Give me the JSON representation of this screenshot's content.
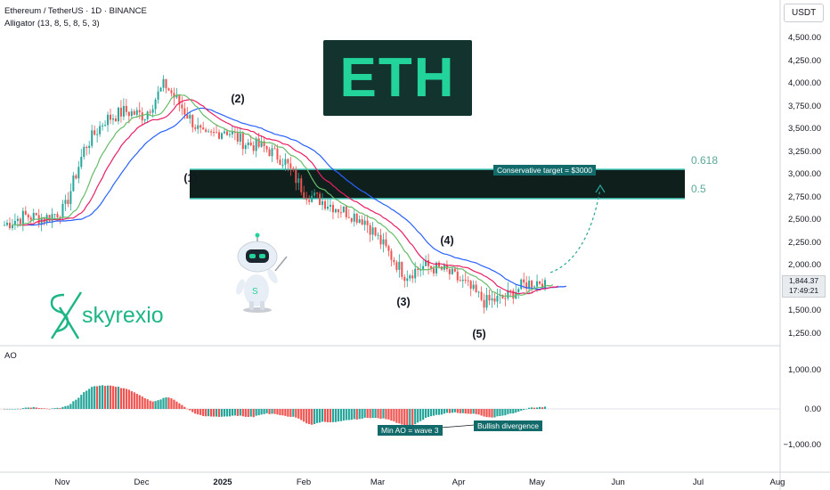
{
  "header": {
    "symbol": "Ethereum / TetherUS · 1D · BINANCE",
    "indicator": "Alligator (13, 8, 5, 8, 5, 3)",
    "currency_button": "USDT",
    "oscillator_label": "AO"
  },
  "banner": {
    "text": "ETH"
  },
  "logo": {
    "brand": "skyrexio"
  },
  "price_axis": {
    "labels": [
      "4,500.00",
      "4,250.00",
      "4,000.00",
      "3,750.00",
      "3,500.00",
      "3,250.00",
      "3,000.00",
      "2,750.00",
      "2,500.00",
      "2,250.00",
      "2,000.00",
      "1,500.00",
      "1,250.00"
    ],
    "last_price": "1,844.37",
    "countdown": "17:49:21"
  },
  "ao_axis": {
    "labels": [
      "1,000.00",
      "0.00",
      "−1,000.00"
    ]
  },
  "time_axis": {
    "labels": [
      "Nov",
      "Dec",
      "2025",
      "Feb",
      "Mar",
      "Apr",
      "May",
      "Jun",
      "Jul",
      "Aug"
    ]
  },
  "waves": {
    "w1": "(1)",
    "w2": "(2)",
    "w3": "(3)",
    "w4": "(4)",
    "w5": "(5)"
  },
  "fib": {
    "upper": "0.618",
    "lower": "0.5"
  },
  "annotations": {
    "target": "Conservative target = $3000",
    "min_ao": "Min AO = wave 3",
    "divergence": "Bullish divergence"
  },
  "colors": {
    "up": "#26a69a",
    "down": "#ef5350",
    "jaw": "#2962ff",
    "teeth": "#e91e63",
    "lips": "#66bb6a",
    "zone_line": "#4dd0c4",
    "zone_fill": "#0f1f1c"
  },
  "chart_data": {
    "type": "candlestick",
    "title": "Ethereum / TetherUS · 1D · BINANCE",
    "x": [
      "Nov",
      "Dec",
      "2025",
      "Feb",
      "Mar",
      "Apr",
      "May"
    ],
    "close_path": [
      2450,
      2550,
      2520,
      2620,
      3300,
      3600,
      3700,
      3650,
      4000,
      3700,
      3400,
      3500,
      3350,
      3300,
      3150,
      2800,
      2700,
      2600,
      2500,
      2200,
      1900,
      2000,
      1950,
      1800,
      1600,
      1650,
      1800,
      1844.37
    ],
    "ylim": [
      1150,
      4650
    ],
    "fib_zone": {
      "0.618": 3060,
      "0.5": 2730
    },
    "target_price": 3000,
    "last_price": 1844.37,
    "ao_ylim": [
      -1250,
      1250
    ]
  }
}
